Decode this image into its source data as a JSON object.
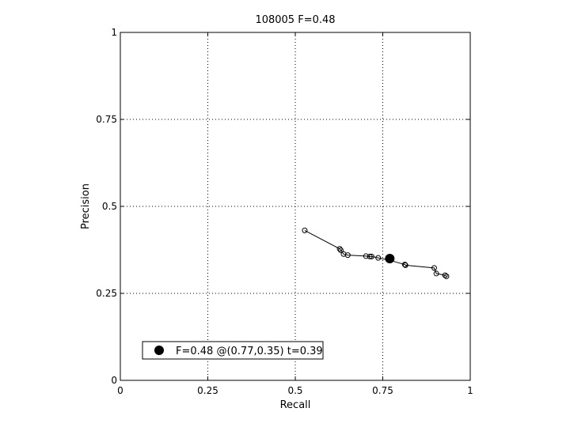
{
  "chart_data": {
    "type": "scatter",
    "title": "108005 F=0.48",
    "xlabel": "Recall",
    "ylabel": "Precision",
    "xlim": [
      0,
      1
    ],
    "ylim": [
      0,
      1
    ],
    "grid": true,
    "x_ticks": [
      0,
      0.25,
      0.5,
      0.75,
      1
    ],
    "x_tick_labels": [
      "0",
      "0.25",
      "0.5",
      "0.75",
      "1"
    ],
    "y_ticks": [
      0,
      0.25,
      0.5,
      0.75,
      1
    ],
    "y_tick_labels": [
      "0",
      "0.25",
      "0.5",
      "0.75",
      "1"
    ],
    "series": [
      {
        "marker": "open-circle",
        "line": true,
        "x": [
          0.527,
          0.627,
          0.63,
          0.638,
          0.65,
          0.702,
          0.713,
          0.718,
          0.737,
          0.77,
          0.813,
          0.815,
          0.897,
          0.903,
          0.928,
          0.932
        ],
        "y": [
          0.431,
          0.378,
          0.374,
          0.363,
          0.36,
          0.357,
          0.356,
          0.356,
          0.352,
          0.345,
          0.333,
          0.331,
          0.323,
          0.307,
          0.302,
          0.299
        ]
      }
    ],
    "best_point": {
      "x": 0.77,
      "y": 0.35
    },
    "legend": {
      "text": "F=0.48 @(0.77,0.35) t=0.39",
      "placement": "bottom-left"
    }
  }
}
